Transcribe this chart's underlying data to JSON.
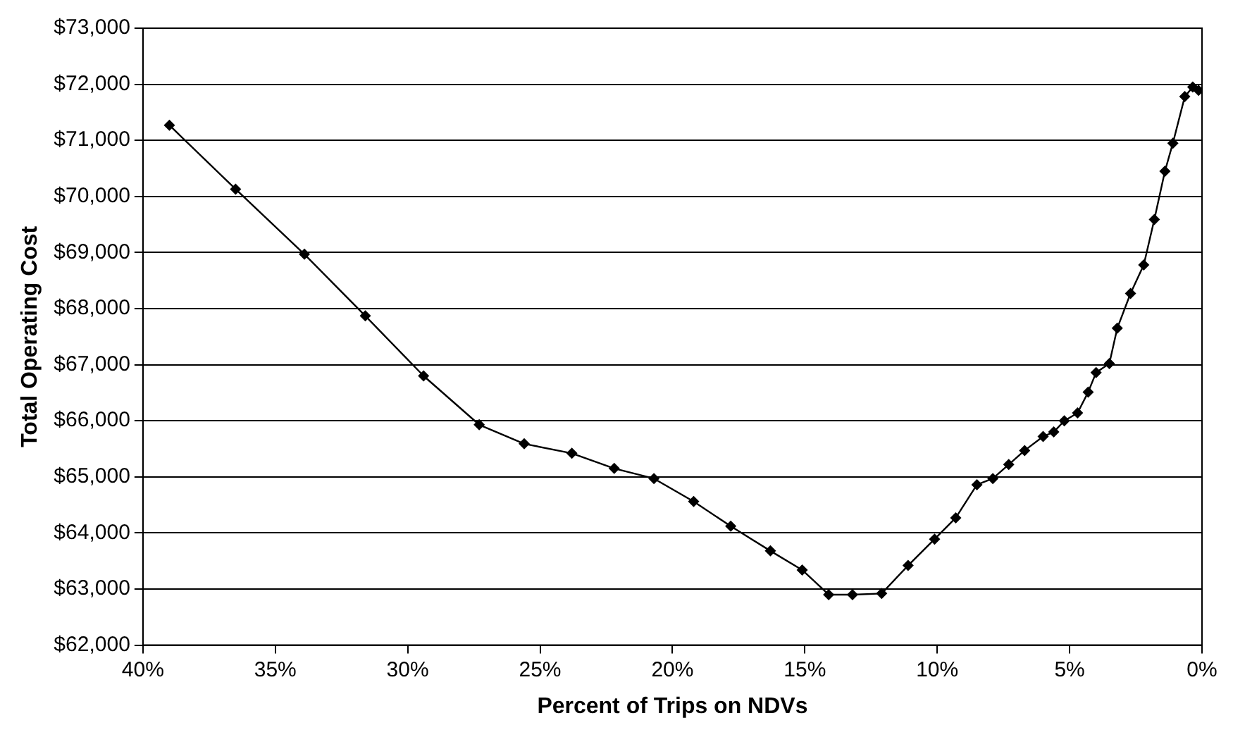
{
  "chart_data": {
    "type": "line",
    "xlabel": "Percent of Trips on NDVs",
    "ylabel": "Total Operating Cost",
    "x": [
      39.0,
      36.5,
      33.9,
      31.6,
      29.4,
      27.3,
      25.6,
      23.8,
      22.2,
      20.7,
      19.2,
      17.8,
      16.3,
      15.1,
      14.1,
      13.2,
      12.1,
      11.1,
      10.1,
      9.3,
      8.5,
      7.9,
      7.3,
      6.7,
      6.0,
      5.6,
      5.2,
      4.7,
      4.3,
      4.0,
      3.5,
      3.2,
      2.7,
      2.2,
      1.8,
      1.4,
      1.1,
      0.65,
      0.35,
      0.13
    ],
    "series": [
      {
        "color": "#000000",
        "values": [
          71270,
          70130,
          68970,
          67870,
          66800,
          65930,
          65590,
          65420,
          65150,
          64970,
          64560,
          64120,
          63680,
          63340,
          62900,
          62900,
          62920,
          63420,
          63890,
          64270,
          64860,
          64970,
          65220,
          65470,
          65720,
          65800,
          66000,
          66140,
          66510,
          66860,
          67020,
          67650,
          68270,
          68780,
          69590,
          70450,
          70950,
          71780,
          71950,
          71890
        ]
      }
    ],
    "xlim": [
      40,
      0
    ],
    "xticks": [
      {
        "value": 40,
        "label": "40%"
      },
      {
        "value": 35,
        "label": "35%"
      },
      {
        "value": 30,
        "label": "30%"
      },
      {
        "value": 25,
        "label": "25%"
      },
      {
        "value": 20,
        "label": "20%"
      },
      {
        "value": 15,
        "label": "15%"
      },
      {
        "value": 10,
        "label": "10%"
      },
      {
        "value": 5,
        "label": "5%"
      },
      {
        "value": 0,
        "label": "0%"
      }
    ],
    "ylim": [
      62000,
      73000
    ],
    "yticks": [
      {
        "value": 62000,
        "label": "$62,000"
      },
      {
        "value": 63000,
        "label": "$63,000"
      },
      {
        "value": 64000,
        "label": "$64,000"
      },
      {
        "value": 65000,
        "label": "$65,000"
      },
      {
        "value": 66000,
        "label": "$66,000"
      },
      {
        "value": 67000,
        "label": "$67,000"
      },
      {
        "value": 68000,
        "label": "$68,000"
      },
      {
        "value": 69000,
        "label": "$69,000"
      },
      {
        "value": 70000,
        "label": "$70,000"
      },
      {
        "value": 71000,
        "label": "$71,000"
      },
      {
        "value": 72000,
        "label": "$72,000"
      },
      {
        "value": 73000,
        "label": "$73,000"
      }
    ],
    "grid": "y",
    "legend": false,
    "marker": "diamond",
    "line_style": "solid"
  }
}
